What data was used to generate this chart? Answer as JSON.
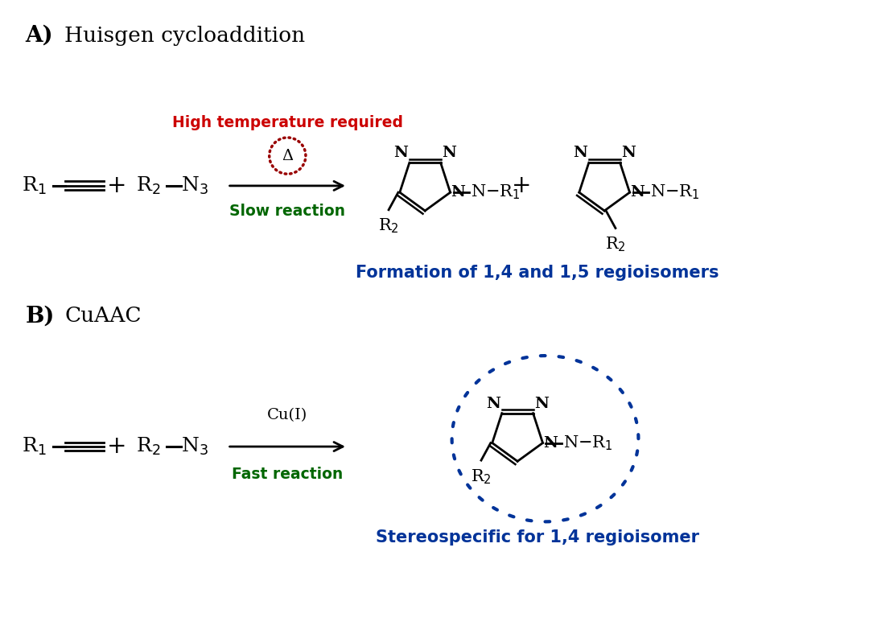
{
  "bg_color": "#ffffff",
  "fig_width": 10.8,
  "fig_height": 7.83,
  "title_A": "A)",
  "label_A": "Huisgen cycloaddition",
  "title_B": "B)",
  "label_B": "CuAAC",
  "high_temp_text": "High temperature required",
  "high_temp_color": "#cc0000",
  "slow_reaction_text": "Slow reaction",
  "slow_reaction_color": "#006600",
  "fast_reaction_text": "Fast reaction",
  "fast_reaction_color": "#006600",
  "cu_text": "Cu(I)",
  "delta_text": "Δ",
  "dashed_circle_A_color": "#990000",
  "dashed_circle_B_color": "#003399",
  "formation_text": "Formation of 1,4 and 1,5 regioisomers",
  "formation_color": "#003399",
  "stereo_text": "Stereospecific for 1,4 regioisomer",
  "stereo_color": "#003399",
  "black": "#000000"
}
